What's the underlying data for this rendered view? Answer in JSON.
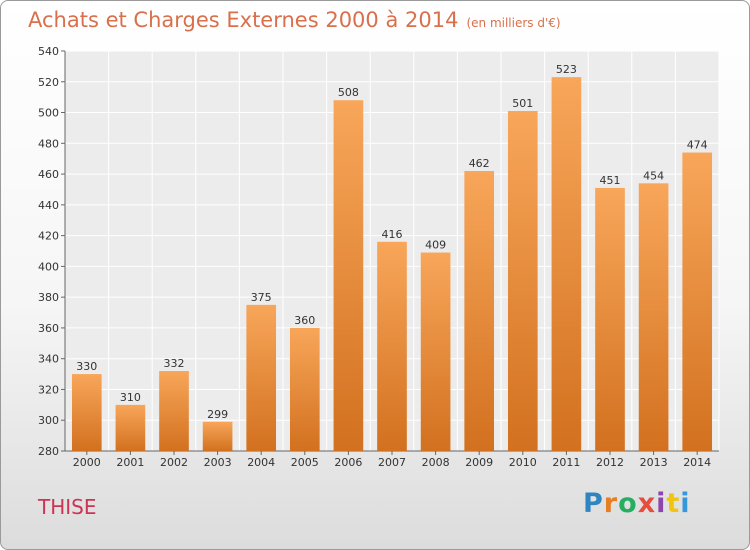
{
  "header": {
    "title": "Achats et Charges Externes 2000 à 2014",
    "subtitle": "(en milliers d'€)"
  },
  "footer": {
    "commune": "THISE",
    "logo_text": "Proxiti",
    "logo_colors": [
      "#2e86c1",
      "#e67e22",
      "#27ae60",
      "#e74c3c",
      "#8e44ad",
      "#f1c40f",
      "#3498db"
    ]
  },
  "chart_data": {
    "type": "bar",
    "title": "Achats et Charges Externes 2000 à 2014",
    "subtitle": "(en milliers d'€)",
    "categories": [
      "2000",
      "2001",
      "2002",
      "2003",
      "2004",
      "2005",
      "2006",
      "2007",
      "2008",
      "2009",
      "2010",
      "2011",
      "2012",
      "2013",
      "2014"
    ],
    "values": [
      330,
      310,
      332,
      299,
      375,
      360,
      508,
      416,
      409,
      462,
      501,
      523,
      451,
      454,
      474
    ],
    "ylim": [
      280,
      540
    ],
    "yticks": [
      280,
      300,
      320,
      340,
      360,
      380,
      400,
      420,
      440,
      460,
      480,
      500,
      520,
      540
    ],
    "grid": true,
    "bar_color_top": "#f8a65a",
    "bar_color_bottom": "#d2711f"
  }
}
